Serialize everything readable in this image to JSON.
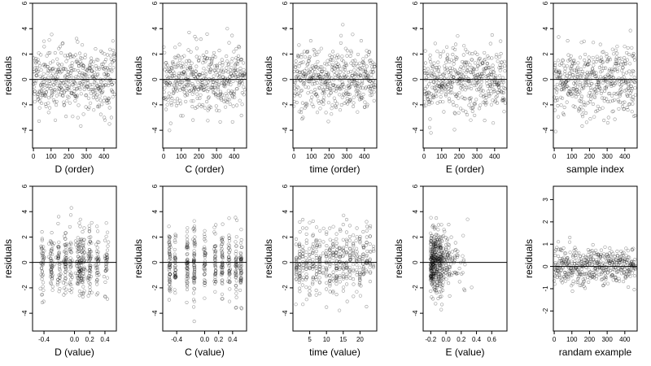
{
  "chart_data": [
    {
      "type": "scatter",
      "xlabel": "D (order)",
      "ylabel": "residuals",
      "xlim": [
        -5,
        470
      ],
      "ylim": [
        -5.4,
        6.0
      ],
      "xticks": [
        0,
        100,
        200,
        300,
        400
      ],
      "xtick_labels": [
        "0",
        "100",
        "200",
        "300",
        "400"
      ],
      "yticks": [
        -4,
        -2,
        0,
        2,
        4,
        6
      ],
      "ytick_labels": [
        "-4",
        "-2",
        "0",
        "2",
        "4",
        "6"
      ],
      "reference_line_y": 0,
      "n_points": 460,
      "x_pattern": "order",
      "x_range": [
        0,
        460
      ],
      "seed": 11
    },
    {
      "type": "scatter",
      "xlabel": "C (order)",
      "ylabel": "residuals",
      "xlim": [
        -5,
        470
      ],
      "ylim": [
        -5.4,
        6.0
      ],
      "xticks": [
        0,
        100,
        200,
        300,
        400
      ],
      "xtick_labels": [
        "0",
        "100",
        "200",
        "300",
        "400"
      ],
      "yticks": [
        -4,
        -2,
        0,
        2,
        4,
        6
      ],
      "ytick_labels": [
        "-4",
        "-2",
        "0",
        "2",
        "4",
        "6"
      ],
      "reference_line_y": 0,
      "n_points": 460,
      "x_pattern": "order",
      "x_range": [
        0,
        460
      ],
      "seed": 12
    },
    {
      "type": "scatter",
      "xlabel": "time (order)",
      "ylabel": "residuals",
      "xlim": [
        -5,
        470
      ],
      "ylim": [
        -5.4,
        6.0
      ],
      "xticks": [
        0,
        100,
        200,
        300,
        400
      ],
      "xtick_labels": [
        "0",
        "100",
        "200",
        "300",
        "400"
      ],
      "yticks": [
        -4,
        -2,
        0,
        2,
        4,
        6
      ],
      "ytick_labels": [
        "-4",
        "-2",
        "0",
        "2",
        "4",
        "6"
      ],
      "reference_line_y": 0,
      "n_points": 460,
      "x_pattern": "order",
      "x_range": [
        0,
        460
      ],
      "seed": 13
    },
    {
      "type": "scatter",
      "xlabel": "E (order)",
      "ylabel": "residuals",
      "xlim": [
        -5,
        470
      ],
      "ylim": [
        -5.4,
        6.0
      ],
      "xticks": [
        0,
        100,
        200,
        300,
        400
      ],
      "xtick_labels": [
        "0",
        "100",
        "200",
        "300",
        "400"
      ],
      "yticks": [
        -4,
        -2,
        0,
        2,
        4,
        6
      ],
      "ytick_labels": [
        "-4",
        "-2",
        "0",
        "2",
        "4",
        "6"
      ],
      "reference_line_y": 0,
      "n_points": 460,
      "x_pattern": "order",
      "x_range": [
        0,
        460
      ],
      "seed": 14
    },
    {
      "type": "scatter",
      "xlabel": "sample index",
      "ylabel": "residuals",
      "xlim": [
        -5,
        470
      ],
      "ylim": [
        -5.4,
        6.0
      ],
      "xticks": [
        0,
        100,
        200,
        300,
        400
      ],
      "xtick_labels": [
        "0",
        "100",
        "200",
        "300",
        "400"
      ],
      "yticks": [
        -4,
        -2,
        0,
        2,
        4,
        6
      ],
      "ytick_labels": [
        "-4",
        "-2",
        "0",
        "2",
        "4",
        "6"
      ],
      "reference_line_y": 0,
      "n_points": 460,
      "x_pattern": "order",
      "x_range": [
        0,
        460
      ],
      "seed": 15
    },
    {
      "type": "scatter",
      "xlabel": "D (value)",
      "ylabel": "residuals",
      "xlim": [
        -0.55,
        0.55
      ],
      "ylim": [
        -5.4,
        6.0
      ],
      "xticks": [
        -0.4,
        0.0,
        0.2,
        0.4
      ],
      "xtick_labels": [
        "-0.4",
        "0.0",
        "0.2",
        "0.4"
      ],
      "yticks": [
        -4,
        -2,
        0,
        2,
        4,
        6
      ],
      "ytick_labels": [
        "-4",
        "-2",
        "0",
        "2",
        "4",
        "6"
      ],
      "reference_line_y": 0,
      "n_points": 460,
      "x_pattern": "clusters",
      "x_clusters": [
        -0.42,
        -0.3,
        -0.2,
        -0.12,
        -0.05,
        0.05,
        0.08,
        0.12,
        0.2,
        0.3,
        0.42
      ],
      "x_jitter": 0.012,
      "seed": 21
    },
    {
      "type": "scatter",
      "xlabel": "C (value)",
      "ylabel": "residuals",
      "xlim": [
        -0.6,
        0.6
      ],
      "ylim": [
        -5.4,
        6.0
      ],
      "xticks": [
        -0.4,
        0.0,
        0.2,
        0.4
      ],
      "xtick_labels": [
        "-0.4",
        "0.0",
        "0.2",
        "0.4"
      ],
      "yticks": [
        -4,
        -2,
        0,
        2,
        4,
        6
      ],
      "ytick_labels": [
        "-4",
        "-2",
        "0",
        "2",
        "4",
        "6"
      ],
      "reference_line_y": 0,
      "n_points": 460,
      "x_pattern": "clusters",
      "x_clusters": [
        -0.5,
        -0.42,
        -0.25,
        -0.15,
        0.0,
        0.15,
        0.25,
        0.35,
        0.45,
        0.52
      ],
      "x_jitter": 0.006,
      "seed": 22
    },
    {
      "type": "scatter",
      "xlabel": "time (value)",
      "ylabel": "residuals",
      "xlim": [
        0,
        25
      ],
      "ylim": [
        -5.4,
        6.0
      ],
      "xticks": [
        5,
        10,
        15,
        20
      ],
      "xtick_labels": [
        "5",
        "10",
        "15",
        "20"
      ],
      "yticks": [
        -4,
        -2,
        0,
        2,
        4,
        6
      ],
      "ytick_labels": [
        "-4",
        "-2",
        "0",
        "2",
        "4",
        "6"
      ],
      "reference_line_y": 0,
      "n_points": 460,
      "x_pattern": "clusters",
      "x_clusters": [
        1,
        2,
        3,
        4,
        5,
        6,
        7,
        8,
        9,
        10,
        11,
        12,
        13,
        14,
        15,
        16,
        17,
        18,
        19,
        20,
        21,
        22,
        23,
        24
      ],
      "x_jitter": 0.08,
      "seed": 23
    },
    {
      "type": "scatter",
      "xlabel": "E (value)",
      "ylabel": "residuals",
      "xlim": [
        -0.3,
        0.8
      ],
      "ylim": [
        -5.4,
        6.0
      ],
      "xticks": [
        -0.2,
        0.0,
        0.2,
        0.4,
        0.6
      ],
      "xtick_labels": [
        "-0.2",
        "0.0",
        "0.2",
        "0.4",
        "0.6"
      ],
      "yticks": [
        -4,
        -2,
        0,
        2,
        4,
        6
      ],
      "ytick_labels": [
        "-4",
        "-2",
        "0",
        "2",
        "4",
        "6"
      ],
      "reference_line_y": 0,
      "n_points": 460,
      "x_pattern": "skewed",
      "x_center": -0.15,
      "x_spread": 0.09,
      "x_max": 0.78,
      "seed": 24
    },
    {
      "type": "scatter",
      "xlabel": "randam example",
      "ylabel": "residuals",
      "xlim": [
        -5,
        470
      ],
      "ylim": [
        -2.9,
        3.6
      ],
      "xticks": [
        0,
        100,
        200,
        300,
        400
      ],
      "xtick_labels": [
        "0",
        "100",
        "200",
        "300",
        "400"
      ],
      "yticks": [
        -2,
        -1,
        0,
        1,
        2,
        3
      ],
      "ytick_labels": [
        "-2",
        "-1",
        "0",
        "1",
        "2",
        "3"
      ],
      "reference_line_y": 0,
      "n_points": 460,
      "x_pattern": "order",
      "x_range": [
        0,
        460
      ],
      "y_scale": 0.4,
      "seed": 25
    }
  ]
}
